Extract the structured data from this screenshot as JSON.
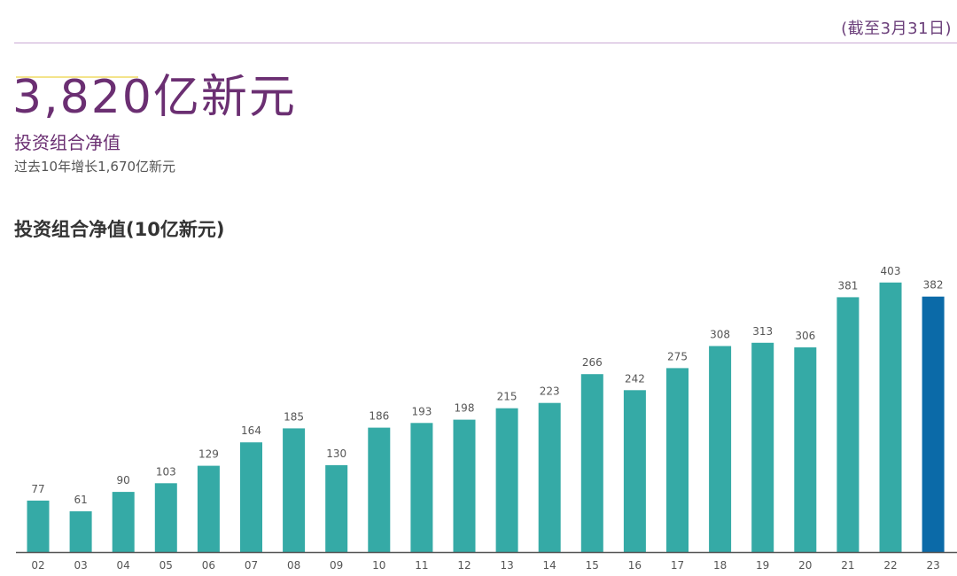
{
  "header": {
    "date_note": "(截至3月31日)"
  },
  "headline": {
    "value": "3,820亿新元",
    "label": "投资组合净值",
    "sub": "过去10年增长1,670亿新元"
  },
  "chart_data": {
    "type": "bar",
    "title": "投资组合净值(10亿新元)",
    "xlabel": "",
    "ylabel": "",
    "categories": [
      "02",
      "03",
      "04",
      "05",
      "06",
      "07",
      "08",
      "09",
      "10",
      "11",
      "12",
      "13",
      "14",
      "15",
      "16",
      "17",
      "18",
      "19",
      "20",
      "21",
      "22",
      "23"
    ],
    "values": [
      77,
      61,
      90,
      103,
      129,
      164,
      185,
      130,
      186,
      193,
      198,
      215,
      223,
      266,
      242,
      275,
      308,
      313,
      306,
      381,
      403,
      382
    ],
    "value_labels": [
      "77",
      "61",
      "90",
      "103",
      "129",
      "164",
      "185",
      "130",
      "186",
      "193",
      "198",
      "215",
      "223",
      "266",
      "242",
      "275",
      "308",
      "313",
      "306",
      "381",
      "403",
      "382"
    ],
    "ylim": [
      0,
      420
    ],
    "grid": false,
    "legend": "none",
    "colors": {
      "bar": "#35aaa6",
      "highlight": "#0b6aa8",
      "axis": "#555555",
      "label": "#555555"
    },
    "highlight_index": 21
  }
}
